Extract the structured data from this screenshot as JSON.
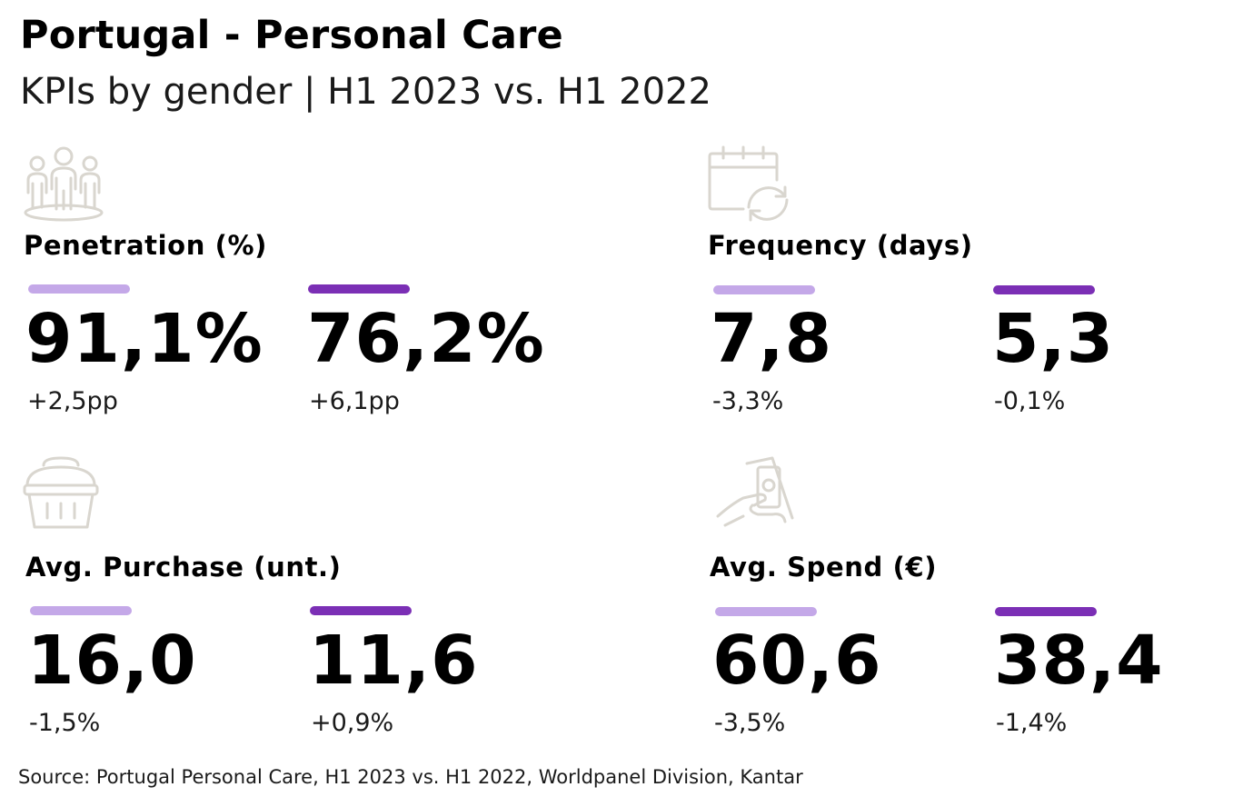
{
  "header": {
    "title": "Portugal - Personal Care",
    "subtitle": "KPIs by gender | H1 2023 vs. H1 2022"
  },
  "colors": {
    "series_light": "#c4a8e8",
    "series_dark": "#7b2fb5",
    "icon_stroke": "#d9d6cf"
  },
  "chart_data": {
    "type": "table",
    "title": "Portugal - Personal Care",
    "subtitle": "KPIs by gender | H1 2023 vs. H1 2022",
    "kpis": [
      {
        "key": "penetration",
        "label": "Penetration (%)",
        "icon": "people-icon",
        "values": [
          {
            "value": "91,1%",
            "change": "+2,5pp"
          },
          {
            "value": "76,2%",
            "change": "+6,1pp"
          }
        ]
      },
      {
        "key": "frequency",
        "label": "Frequency (days)",
        "icon": "calendar-refresh-icon",
        "values": [
          {
            "value": "7,8",
            "change": "-3,3%"
          },
          {
            "value": "5,3",
            "change": "-0,1%"
          }
        ]
      },
      {
        "key": "avg_purchase",
        "label": "Avg. Purchase (unt.)",
        "icon": "basket-icon",
        "values": [
          {
            "value": "16,0",
            "change": "-1,5%"
          },
          {
            "value": "11,6",
            "change": "+0,9%"
          }
        ]
      },
      {
        "key": "avg_spend",
        "label": "Avg. Spend (€)",
        "icon": "hand-money-icon",
        "values": [
          {
            "value": "60,6",
            "change": "-3,5%"
          },
          {
            "value": "38,4",
            "change": "-1,4%"
          }
        ]
      }
    ]
  },
  "footer": {
    "source": "Source: Portugal Personal Care, H1 2023 vs. H1 2022, Worldpanel Division, Kantar"
  }
}
